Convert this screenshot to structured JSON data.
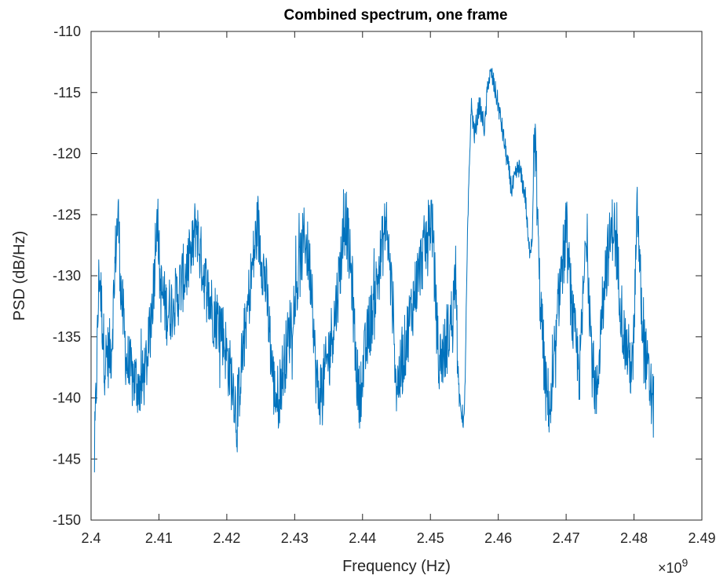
{
  "chart_data": {
    "type": "line",
    "title": "Combined spectrum, one frame",
    "xlabel": "Frequency (Hz)",
    "ylabel": "PSD (dB/Hz)",
    "x_exponent_label": "×10",
    "x_exponent_power": "9",
    "xlim": [
      2.4,
      2.49
    ],
    "ylim": [
      -150,
      -110
    ],
    "x_scale_factor": 1000000000,
    "xticks": [
      2.4,
      2.41,
      2.42,
      2.43,
      2.44,
      2.45,
      2.46,
      2.47,
      2.48,
      2.49
    ],
    "xtick_labels": [
      "2.4",
      "2.41",
      "2.42",
      "2.43",
      "2.44",
      "2.45",
      "2.46",
      "2.47",
      "2.48",
      "2.49"
    ],
    "yticks": [
      -110,
      -115,
      -120,
      -125,
      -130,
      -135,
      -140,
      -145,
      -150
    ],
    "ytick_labels": [
      "-110",
      "-115",
      "-120",
      "-125",
      "-130",
      "-135",
      "-140",
      "-145",
      "-150"
    ],
    "grid": false,
    "box": true,
    "series": [
      {
        "color": "#0072BD",
        "x": [
          2.4005,
          2.4012,
          2.402,
          2.403,
          2.4037,
          2.404,
          2.4044,
          2.4052,
          2.4062,
          2.4075,
          2.4085,
          2.4093,
          2.4097,
          2.4102,
          2.4112,
          2.4125,
          2.4137,
          2.4148,
          2.4155,
          2.416,
          2.417,
          2.418,
          2.4192,
          2.4203,
          2.421,
          2.4215,
          2.422,
          2.4232,
          2.4245,
          2.4258,
          2.4266,
          2.427,
          2.4276,
          2.4285,
          2.43,
          2.4315,
          2.4326,
          2.433,
          2.4335,
          2.4345,
          2.436,
          2.4375,
          2.4385,
          2.439,
          2.4395,
          2.4405,
          2.442,
          2.4435,
          2.4445,
          2.445,
          2.4456,
          2.4465,
          2.4478,
          2.449,
          2.4502,
          2.4506,
          2.4512,
          2.4522,
          2.4533,
          2.4538,
          2.454,
          2.4543,
          2.455,
          2.4555,
          2.456,
          2.4565,
          2.4572,
          2.458,
          2.4585,
          2.459,
          2.46,
          2.461,
          2.462,
          2.463,
          2.464,
          2.4645,
          2.465,
          2.4652,
          2.4655,
          2.466,
          2.467,
          2.4678,
          2.4684,
          2.469,
          2.47,
          2.471,
          2.472,
          2.473,
          2.4738,
          2.4745,
          2.4755,
          2.477,
          2.4785,
          2.4798,
          2.4805,
          2.4812,
          2.482,
          2.4829
        ],
        "y": [
          -145,
          -129.2,
          -137,
          -136,
          -127,
          -125,
          -131,
          -137,
          -138.5,
          -139,
          -136,
          -130,
          -124,
          -131,
          -133,
          -132,
          -130,
          -128.5,
          -125.5,
          -128,
          -131,
          -133,
          -134,
          -137.5,
          -139,
          -142,
          -138,
          -132,
          -126,
          -131,
          -137,
          -139.5,
          -140,
          -137,
          -132,
          -126.5,
          -131,
          -137,
          -140,
          -138,
          -133,
          -125,
          -131,
          -137,
          -140,
          -136,
          -131,
          -125.5,
          -133,
          -139,
          -138,
          -135,
          -131,
          -128,
          -125,
          -130,
          -137,
          -136,
          -133,
          -128.5,
          -137,
          -140.5,
          -142,
          -126,
          -116,
          -118.5,
          -116,
          -118,
          -114,
          -113.5,
          -116,
          -119.5,
          -123,
          -121,
          -123.5,
          -128,
          -127,
          -121,
          -119,
          -130,
          -139.5,
          -141,
          -137,
          -131,
          -126.5,
          -134,
          -138,
          -126,
          -137,
          -140,
          -130.5,
          -125.5,
          -135,
          -138,
          -124.5,
          -134,
          -138,
          -141
        ]
      }
    ]
  }
}
